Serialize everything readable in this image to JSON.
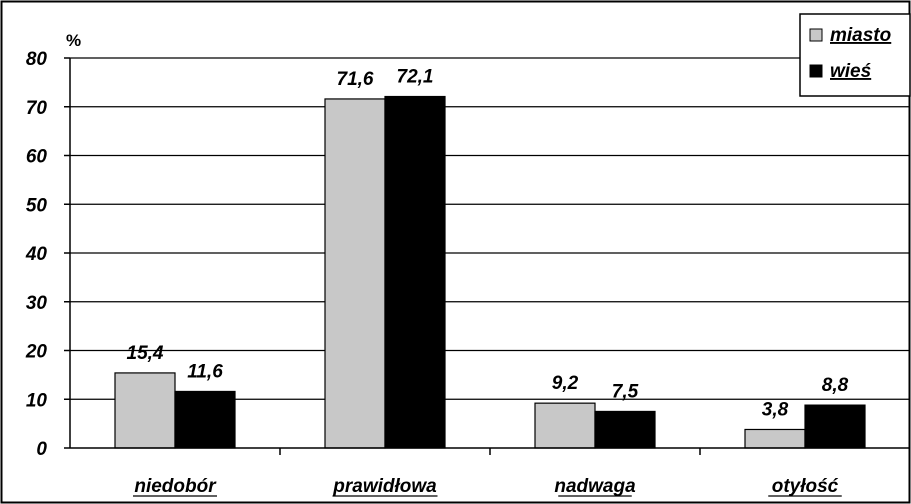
{
  "chart_data": {
    "type": "bar",
    "unit_label": "%",
    "categories": [
      "niedobór",
      "prawidłowa",
      "nadwaga",
      "otyłość"
    ],
    "series": [
      {
        "name": "miasto",
        "color": "#c8c8c8",
        "values": [
          15.4,
          71.6,
          9.2,
          3.8
        ],
        "labels": [
          "15,4",
          "71,6",
          "9,2",
          "3,8"
        ]
      },
      {
        "name": "wieś",
        "color": "#000000",
        "values": [
          11.6,
          72.1,
          7.5,
          8.8
        ],
        "labels": [
          "11,6",
          "72,1",
          "7,5",
          "8,8"
        ]
      }
    ],
    "yticks": [
      "0",
      "10",
      "20",
      "30",
      "40",
      "50",
      "60",
      "70",
      "80"
    ],
    "ylim": [
      0,
      80
    ],
    "grid": true,
    "legend_position": "top-right"
  }
}
